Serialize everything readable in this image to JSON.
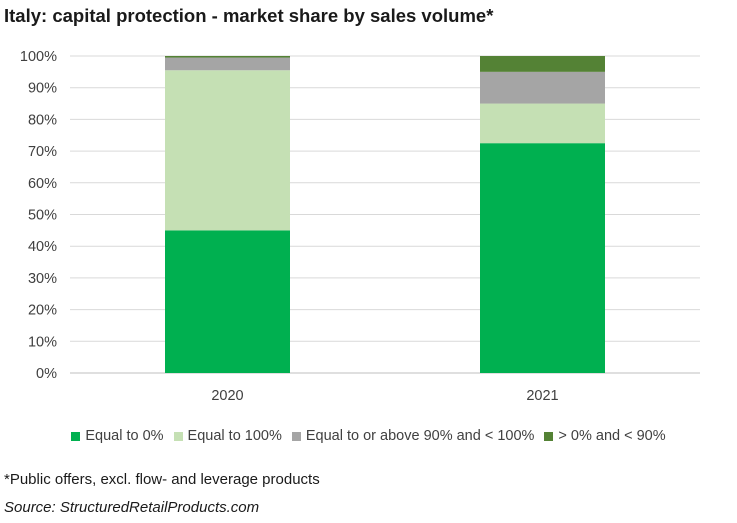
{
  "chart_data": {
    "type": "bar",
    "stacked": true,
    "title": "Italy: capital protection - market share by sales volume*",
    "categories": [
      "2020",
      "2021"
    ],
    "series": [
      {
        "name": "Equal to 0%",
        "color": "#00b050",
        "values": [
          45,
          72.5
        ]
      },
      {
        "name": "Equal to 100%",
        "color": "#c5e0b4",
        "values": [
          50.5,
          12.5
        ]
      },
      {
        "name": "Equal to or above 90% and < 100%",
        "color": "#a5a5a5",
        "values": [
          4,
          10
        ]
      },
      {
        "name": "> 0% and < 90%",
        "color": "#548235",
        "values": [
          0.5,
          5
        ]
      }
    ],
    "ylim": [
      0,
      100
    ],
    "yticks": [
      "0%",
      "10%",
      "20%",
      "30%",
      "40%",
      "50%",
      "60%",
      "70%",
      "80%",
      "90%",
      "100%"
    ],
    "grid": true,
    "legend_position": "bottom"
  },
  "footnote": "*Public offers, excl. flow- and leverage products",
  "source": "Source: StructuredRetailProducts.com"
}
